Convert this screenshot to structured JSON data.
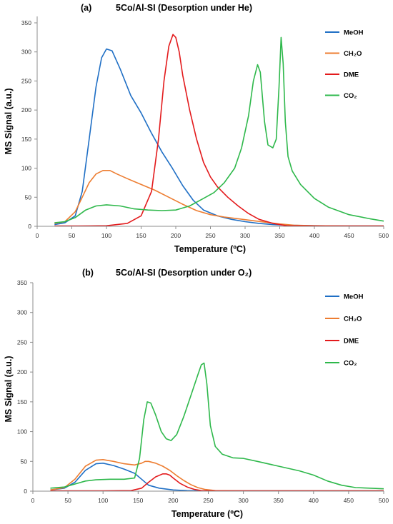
{
  "chart_data": [
    {
      "type": "line",
      "title": "5Co/Al-SI (Desorption under He)",
      "panel": "(a)",
      "xlabel": "Temperature (ºC)",
      "ylabel": "MS Signal (a.u.)",
      "xlim": [
        0,
        500
      ],
      "ylim": [
        0,
        350
      ],
      "xticks": [
        "0",
        "50",
        "100",
        "150",
        "200",
        "250",
        "300",
        "350",
        "400",
        "450",
        "500"
      ],
      "yticks": [
        "0",
        "50",
        "100",
        "150",
        "200",
        "250",
        "300",
        "350"
      ],
      "grid": false,
      "legend_position": "top-right",
      "series": [
        {
          "name": "MeOH",
          "color": "#1f6fc5",
          "x": [
            25,
            40,
            55,
            65,
            75,
            85,
            93,
            100,
            108,
            120,
            135,
            150,
            165,
            180,
            195,
            210,
            225,
            240,
            260,
            280,
            300,
            320,
            340,
            360,
            400,
            450,
            500
          ],
          "y": [
            3,
            6,
            18,
            60,
            150,
            240,
            290,
            305,
            302,
            270,
            225,
            195,
            160,
            128,
            100,
            70,
            45,
            28,
            18,
            12,
            8,
            5,
            3,
            2,
            1,
            0.5,
            0.5
          ]
        },
        {
          "name": "CH₂O",
          "color": "#ed7d31",
          "x": [
            25,
            40,
            55,
            65,
            75,
            85,
            95,
            105,
            115,
            130,
            150,
            170,
            190,
            210,
            230,
            250,
            270,
            290,
            310,
            330,
            350,
            370,
            400,
            450,
            500
          ],
          "y": [
            5,
            8,
            25,
            50,
            75,
            90,
            96,
            96,
            90,
            82,
            72,
            62,
            50,
            38,
            27,
            20,
            16,
            13,
            10,
            7,
            4,
            2,
            1,
            0.5,
            0.5
          ]
        },
        {
          "name": "DME",
          "color": "#e31a1c",
          "x": [
            25,
            60,
            100,
            130,
            150,
            165,
            175,
            183,
            190,
            196,
            200,
            205,
            210,
            220,
            230,
            240,
            250,
            260,
            275,
            290,
            305,
            320,
            340,
            360,
            400,
            450,
            500
          ],
          "y": [
            0.5,
            0.5,
            1,
            5,
            18,
            60,
            150,
            250,
            310,
            330,
            325,
            300,
            260,
            200,
            150,
            110,
            85,
            68,
            50,
            35,
            22,
            12,
            5,
            1,
            0.5,
            0.5,
            0.5
          ]
        },
        {
          "name": "CO₂",
          "color": "#2eb84b",
          "x": [
            25,
            40,
            55,
            70,
            85,
            100,
            120,
            140,
            160,
            180,
            200,
            220,
            240,
            255,
            270,
            285,
            295,
            305,
            312,
            318,
            322,
            328,
            333,
            340,
            345,
            349,
            352,
            355,
            358,
            362,
            368,
            380,
            400,
            420,
            450,
            480,
            500
          ],
          "y": [
            6,
            8,
            15,
            28,
            35,
            37,
            35,
            30,
            28,
            27,
            28,
            35,
            48,
            58,
            75,
            100,
            135,
            190,
            250,
            278,
            265,
            180,
            140,
            135,
            150,
            240,
            325,
            280,
            180,
            120,
            95,
            72,
            48,
            33,
            20,
            13,
            9
          ]
        }
      ]
    },
    {
      "type": "line",
      "title": "5Co/Al-SI (Desorption under O₂)",
      "panel": "(b)",
      "xlabel": "Temperature (ºC)",
      "ylabel": "MS Signal (a.u.)",
      "xlim": [
        0,
        500
      ],
      "ylim": [
        0,
        350
      ],
      "xticks": [
        "0",
        "50",
        "100",
        "150",
        "200",
        "250",
        "300",
        "350",
        "400",
        "450",
        "500"
      ],
      "yticks": [
        "0",
        "50",
        "100",
        "150",
        "200",
        "250",
        "300",
        "350"
      ],
      "grid": false,
      "legend_position": "top-right",
      "series": [
        {
          "name": "MeOH",
          "color": "#1f6fc5",
          "x": [
            25,
            45,
            60,
            75,
            90,
            100,
            115,
            130,
            145,
            155,
            165,
            180,
            200,
            220,
            240,
            260,
            300,
            350,
            400,
            450,
            500
          ],
          "y": [
            2,
            5,
            15,
            35,
            46,
            47,
            43,
            37,
            30,
            20,
            10,
            5,
            2,
            1,
            0.5,
            0.5,
            0.5,
            0.5,
            0.5,
            0.5,
            0.5
          ]
        },
        {
          "name": "CH₂O",
          "color": "#ed7d31",
          "x": [
            25,
            45,
            60,
            75,
            90,
            100,
            115,
            130,
            145,
            155,
            160,
            165,
            175,
            185,
            195,
            205,
            215,
            225,
            235,
            245,
            260,
            300,
            350,
            400,
            450,
            500
          ],
          "y": [
            2,
            6,
            20,
            42,
            52,
            53,
            50,
            46,
            44,
            47,
            50,
            50,
            47,
            42,
            35,
            26,
            18,
            11,
            6,
            3,
            1,
            0.5,
            0.5,
            0.5,
            0.5,
            0.5
          ]
        },
        {
          "name": "DME",
          "color": "#e31a1c",
          "x": [
            25,
            100,
            140,
            155,
            165,
            175,
            185,
            190,
            195,
            200,
            210,
            220,
            230,
            240,
            260,
            300,
            350,
            400,
            450,
            500
          ],
          "y": [
            0.5,
            0.5,
            1,
            5,
            15,
            24,
            29,
            29,
            27,
            22,
            13,
            7,
            3,
            1,
            0.5,
            0.5,
            0.5,
            0.5,
            0.5,
            0.5
          ]
        },
        {
          "name": "CO₂",
          "color": "#2eb84b",
          "x": [
            25,
            45,
            60,
            75,
            90,
            110,
            130,
            145,
            152,
            158,
            163,
            168,
            175,
            183,
            190,
            197,
            205,
            215,
            225,
            235,
            240,
            244,
            248,
            253,
            260,
            270,
            285,
            300,
            320,
            350,
            380,
            400,
            420,
            440,
            460,
            480,
            500
          ],
          "y": [
            5,
            7,
            12,
            17,
            19,
            20,
            20,
            22,
            55,
            120,
            150,
            148,
            128,
            100,
            88,
            85,
            95,
            125,
            160,
            195,
            212,
            215,
            180,
            110,
            75,
            62,
            56,
            55,
            50,
            42,
            34,
            27,
            17,
            10,
            6,
            5,
            4
          ]
        }
      ]
    }
  ]
}
